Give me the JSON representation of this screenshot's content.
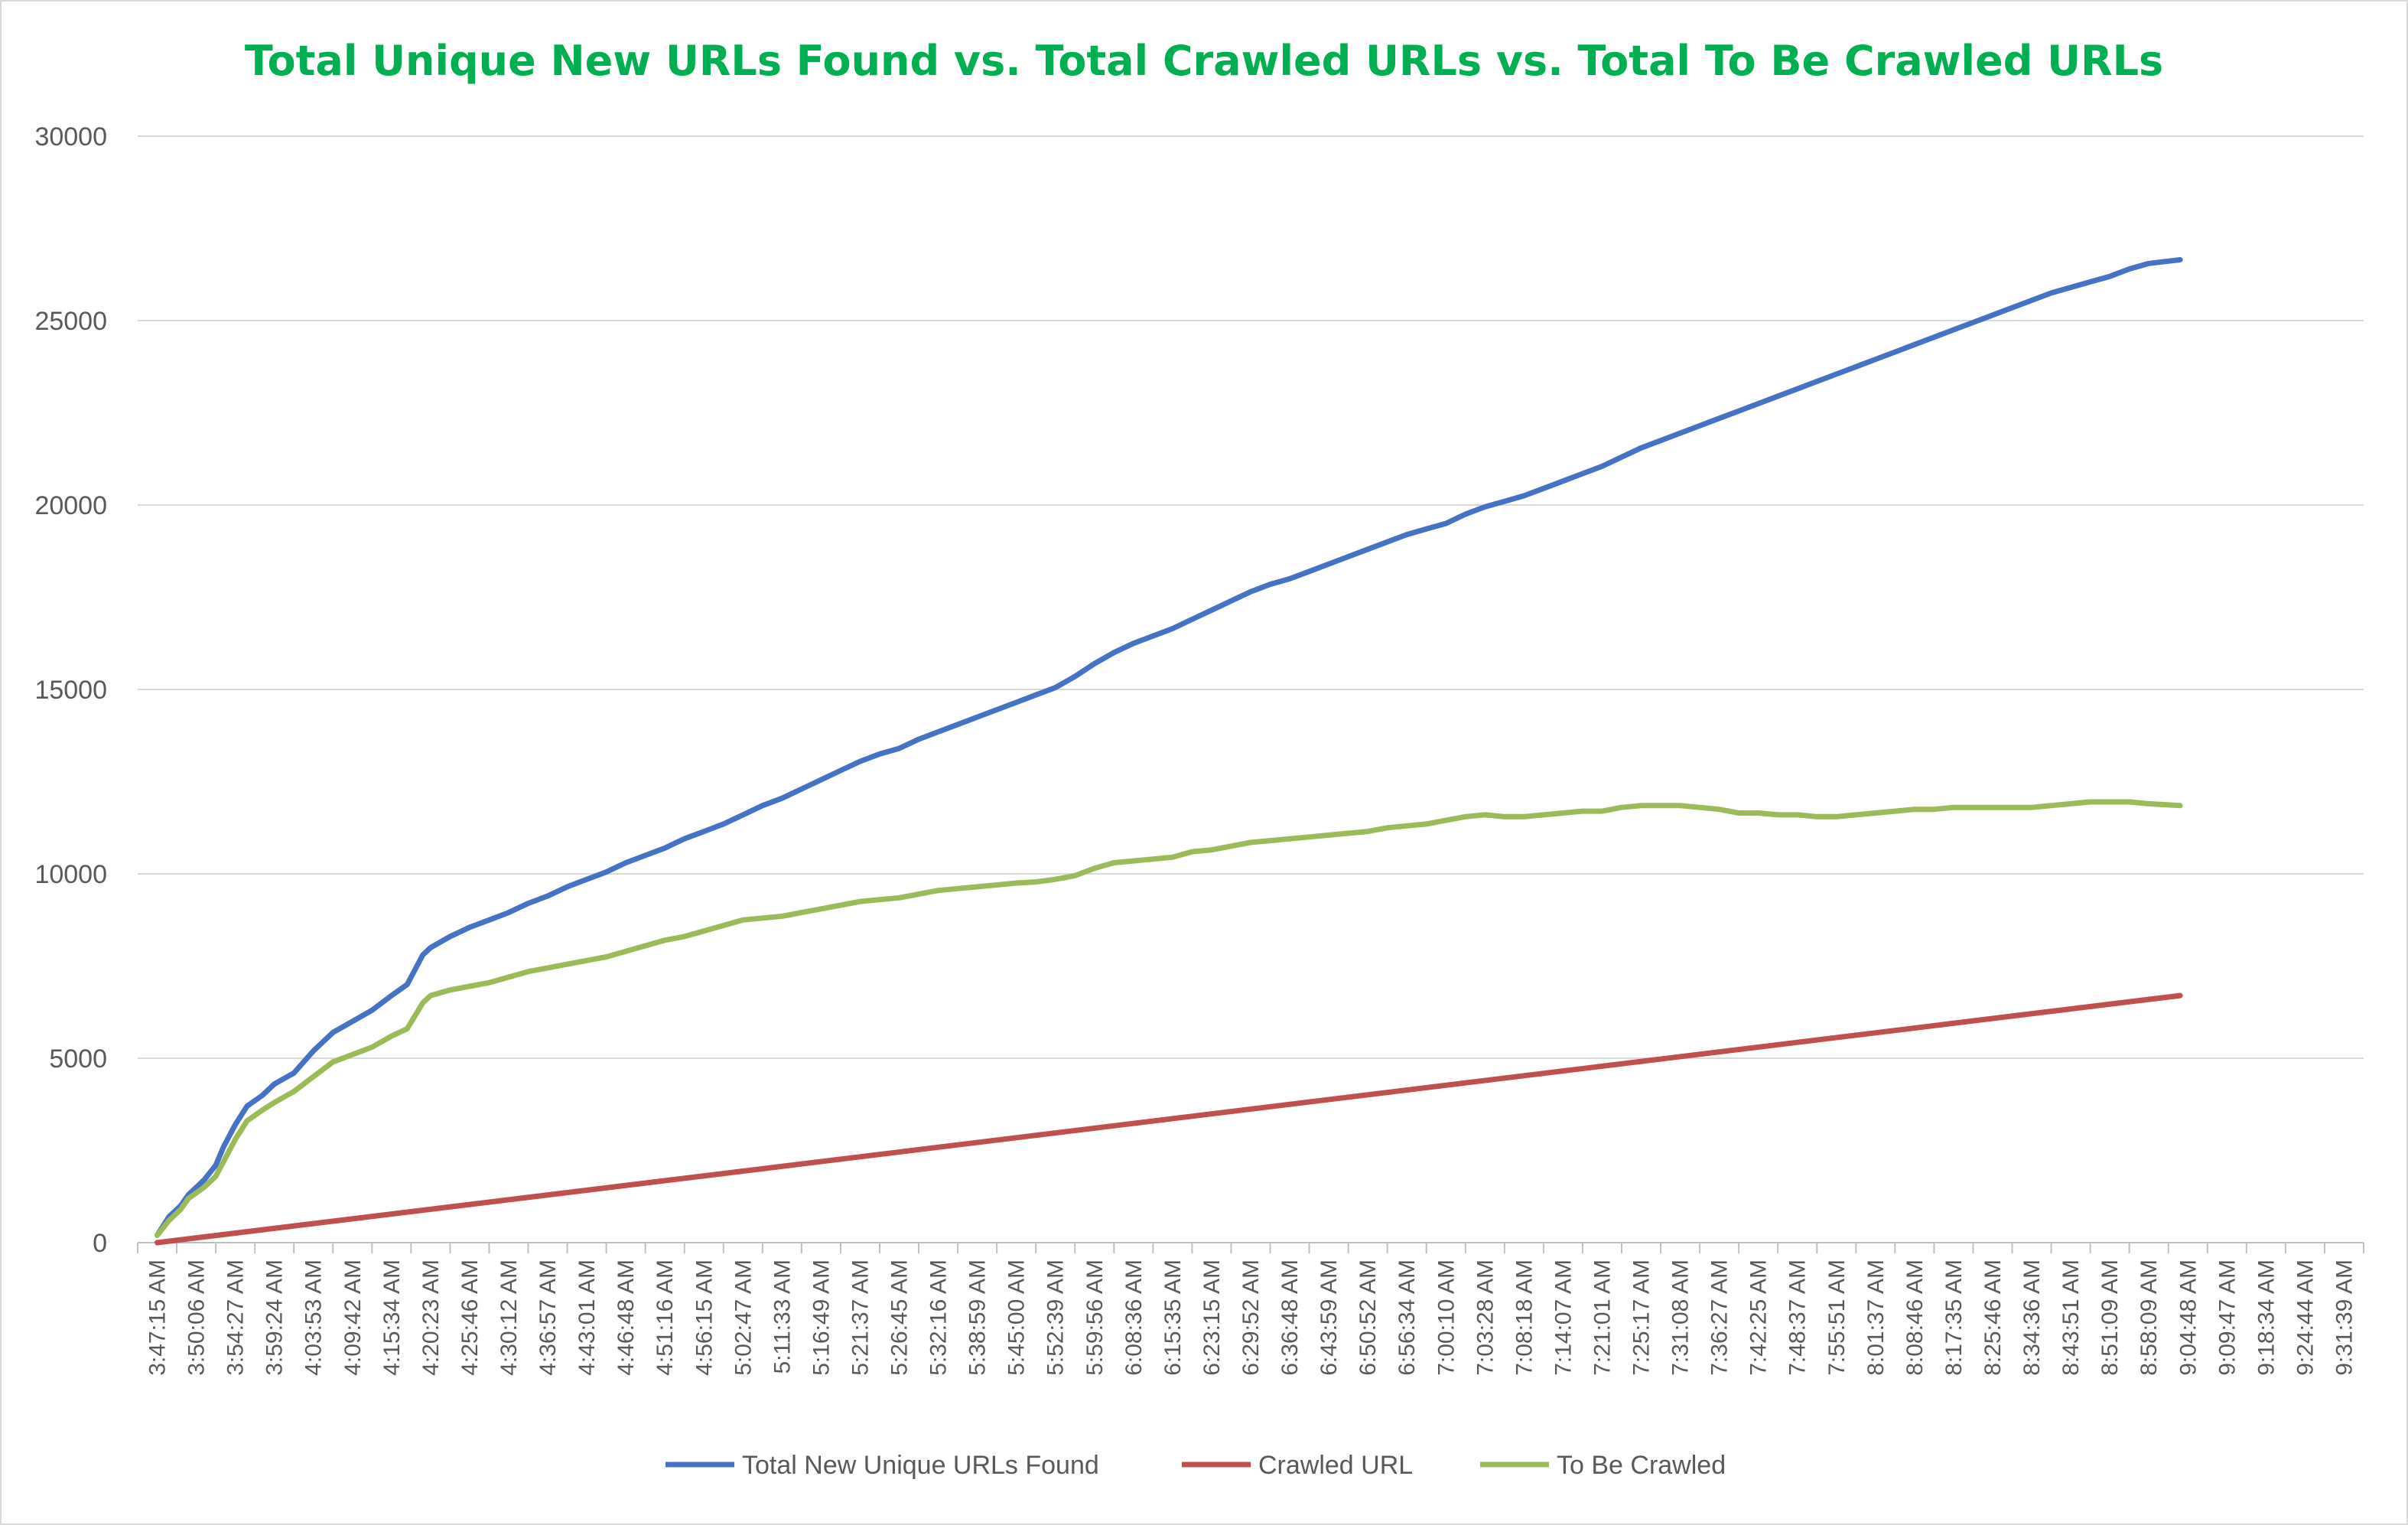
{
  "chart_data": {
    "type": "line",
    "title": "Total Unique New URLs Found vs. Total Crawled URLs vs. Total To Be Crawled URLs",
    "xlabel": "",
    "ylabel": "",
    "ylim": [
      0,
      30000
    ],
    "y_ticks": [
      "0",
      "5000",
      "10000",
      "15000",
      "20000",
      "25000",
      "30000"
    ],
    "grid": true,
    "legend_position": "bottom",
    "x": [
      "3:47:15 AM",
      "3:50:06 AM",
      "3:54:27 AM",
      "3:59:24 AM",
      "4:03:53 AM",
      "4:09:42 AM",
      "4:15:34 AM",
      "4:20:23 AM",
      "4:25:46 AM",
      "4:30:12 AM",
      "4:36:57 AM",
      "4:43:01 AM",
      "4:46:48 AM",
      "4:51:16 AM",
      "4:56:15 AM",
      "5:02:47 AM",
      "5:11:33 AM",
      "5:16:49 AM",
      "5:21:37 AM",
      "5:26:45 AM",
      "5:32:16 AM",
      "5:38:59 AM",
      "5:45:00 AM",
      "5:52:39 AM",
      "5:59:56 AM",
      "6:08:36 AM",
      "6:15:35 AM",
      "6:23:15 AM",
      "6:29:52 AM",
      "6:36:48 AM",
      "6:43:59 AM",
      "6:50:52 AM",
      "6:56:34 AM",
      "7:00:10 AM",
      "7:03:28 AM",
      "7:08:18 AM",
      "7:14:07 AM",
      "7:21:01 AM",
      "7:25:17 AM",
      "7:31:08 AM",
      "7:36:27 AM",
      "7:42:25 AM",
      "7:48:37 AM",
      "7:55:51 AM",
      "8:01:37 AM",
      "8:08:46 AM",
      "8:17:35 AM",
      "8:25:46 AM",
      "8:34:36 AM",
      "8:43:51 AM",
      "8:51:09 AM",
      "8:58:09 AM",
      "9:04:48 AM",
      "9:09:47 AM",
      "9:18:34 AM",
      "9:24:44 AM",
      "9:31:39 AM"
    ],
    "series": [
      {
        "name": "Total New Unique URLs Found",
        "color": "#4472c4",
        "values": [
          [
            0,
            200
          ],
          [
            0.3,
            700
          ],
          [
            0.6,
            1000
          ],
          [
            0.8,
            1300
          ],
          [
            1.2,
            1700
          ],
          [
            1.5,
            2100
          ],
          [
            1.7,
            2600
          ],
          [
            2.0,
            3200
          ],
          [
            2.3,
            3700
          ],
          [
            2.7,
            4000
          ],
          [
            3.0,
            4300
          ],
          [
            3.5,
            4600
          ],
          [
            4.0,
            5200
          ],
          [
            4.5,
            5700
          ],
          [
            5.0,
            6000
          ],
          [
            5.5,
            6300
          ],
          [
            6.0,
            6700
          ],
          [
            6.4,
            7000
          ],
          [
            6.8,
            7800
          ],
          [
            7.0,
            8000
          ],
          [
            7.5,
            8300
          ],
          [
            8.0,
            8550
          ],
          [
            8.5,
            8750
          ],
          [
            9.0,
            8950
          ],
          [
            9.5,
            9200
          ],
          [
            10.0,
            9400
          ],
          [
            10.5,
            9650
          ],
          [
            11.0,
            9850
          ],
          [
            11.5,
            10050
          ],
          [
            12.0,
            10300
          ],
          [
            12.5,
            10500
          ],
          [
            13.0,
            10700
          ],
          [
            13.5,
            10950
          ],
          [
            14.0,
            11150
          ],
          [
            14.5,
            11350
          ],
          [
            15.0,
            11600
          ],
          [
            15.5,
            11850
          ],
          [
            16.0,
            12050
          ],
          [
            16.5,
            12300
          ],
          [
            17.0,
            12550
          ],
          [
            17.5,
            12800
          ],
          [
            18.0,
            13050
          ],
          [
            18.5,
            13250
          ],
          [
            19.0,
            13400
          ],
          [
            19.5,
            13650
          ],
          [
            20.0,
            13850
          ],
          [
            20.5,
            14050
          ],
          [
            21.0,
            14250
          ],
          [
            21.5,
            14450
          ],
          [
            22.0,
            14650
          ],
          [
            22.5,
            14850
          ],
          [
            23.0,
            15050
          ],
          [
            23.5,
            15350
          ],
          [
            24.0,
            15700
          ],
          [
            24.5,
            16000
          ],
          [
            25.0,
            16250
          ],
          [
            25.5,
            16450
          ],
          [
            26.0,
            16650
          ],
          [
            26.5,
            16900
          ],
          [
            27.0,
            17150
          ],
          [
            27.5,
            17400
          ],
          [
            28.0,
            17650
          ],
          [
            28.5,
            17850
          ],
          [
            29.0,
            18000
          ],
          [
            29.5,
            18200
          ],
          [
            30.0,
            18400
          ],
          [
            30.5,
            18600
          ],
          [
            31.0,
            18800
          ],
          [
            31.5,
            19000
          ],
          [
            32.0,
            19200
          ],
          [
            32.5,
            19350
          ],
          [
            33.0,
            19500
          ],
          [
            33.5,
            19750
          ],
          [
            34.0,
            19950
          ],
          [
            34.5,
            20100
          ],
          [
            35.0,
            20250
          ],
          [
            35.5,
            20450
          ],
          [
            36.0,
            20650
          ],
          [
            36.5,
            20850
          ],
          [
            37.0,
            21050
          ],
          [
            37.5,
            21300
          ],
          [
            38.0,
            21550
          ],
          [
            38.5,
            21750
          ],
          [
            39.0,
            21950
          ],
          [
            39.5,
            22150
          ],
          [
            40.0,
            22350
          ],
          [
            40.5,
            22550
          ],
          [
            41.0,
            22750
          ],
          [
            41.5,
            22950
          ],
          [
            42.0,
            23150
          ],
          [
            42.5,
            23350
          ],
          [
            43.0,
            23550
          ],
          [
            43.5,
            23750
          ],
          [
            44.0,
            23950
          ],
          [
            44.5,
            24150
          ],
          [
            45.0,
            24350
          ],
          [
            45.5,
            24550
          ],
          [
            46.0,
            24750
          ],
          [
            46.5,
            24950
          ],
          [
            47.0,
            25150
          ],
          [
            47.5,
            25350
          ],
          [
            48.0,
            25550
          ],
          [
            48.5,
            25750
          ],
          [
            49.0,
            25900
          ],
          [
            49.5,
            26050
          ],
          [
            50.0,
            26200
          ],
          [
            50.5,
            26400
          ],
          [
            51.0,
            26550
          ],
          [
            51.8,
            26650
          ]
        ]
      },
      {
        "name": "Crawled URL",
        "color": "#c0504d",
        "values": [
          [
            0,
            0
          ],
          [
            51.8,
            6700
          ]
        ]
      },
      {
        "name": "To Be Crawled",
        "color": "#9bbb59",
        "values": [
          [
            0,
            200
          ],
          [
            0.3,
            600
          ],
          [
            0.6,
            900
          ],
          [
            0.8,
            1200
          ],
          [
            1.2,
            1500
          ],
          [
            1.5,
            1800
          ],
          [
            1.7,
            2200
          ],
          [
            2.0,
            2800
          ],
          [
            2.3,
            3300
          ],
          [
            2.7,
            3600
          ],
          [
            3.0,
            3800
          ],
          [
            3.5,
            4100
          ],
          [
            4.0,
            4500
          ],
          [
            4.5,
            4900
          ],
          [
            5.0,
            5100
          ],
          [
            5.5,
            5300
          ],
          [
            6.0,
            5600
          ],
          [
            6.4,
            5800
          ],
          [
            6.8,
            6500
          ],
          [
            7.0,
            6700
          ],
          [
            7.5,
            6850
          ],
          [
            8.0,
            6950
          ],
          [
            8.5,
            7050
          ],
          [
            9.0,
            7200
          ],
          [
            9.5,
            7350
          ],
          [
            10.0,
            7450
          ],
          [
            10.5,
            7550
          ],
          [
            11.0,
            7650
          ],
          [
            11.5,
            7750
          ],
          [
            12.0,
            7900
          ],
          [
            12.5,
            8050
          ],
          [
            13.0,
            8200
          ],
          [
            13.5,
            8300
          ],
          [
            14.0,
            8450
          ],
          [
            14.5,
            8600
          ],
          [
            15.0,
            8750
          ],
          [
            15.5,
            8800
          ],
          [
            16.0,
            8850
          ],
          [
            16.5,
            8950
          ],
          [
            17.0,
            9050
          ],
          [
            17.5,
            9150
          ],
          [
            18.0,
            9250
          ],
          [
            18.5,
            9300
          ],
          [
            19.0,
            9350
          ],
          [
            19.5,
            9450
          ],
          [
            20.0,
            9550
          ],
          [
            20.5,
            9600
          ],
          [
            21.0,
            9650
          ],
          [
            21.5,
            9700
          ],
          [
            22.0,
            9750
          ],
          [
            22.5,
            9780
          ],
          [
            23.0,
            9850
          ],
          [
            23.5,
            9950
          ],
          [
            24.0,
            10150
          ],
          [
            24.5,
            10300
          ],
          [
            25.0,
            10350
          ],
          [
            25.5,
            10400
          ],
          [
            26.0,
            10450
          ],
          [
            26.5,
            10600
          ],
          [
            27.0,
            10650
          ],
          [
            27.5,
            10750
          ],
          [
            28.0,
            10850
          ],
          [
            28.5,
            10900
          ],
          [
            29.0,
            10950
          ],
          [
            29.5,
            11000
          ],
          [
            30.0,
            11050
          ],
          [
            30.5,
            11100
          ],
          [
            31.0,
            11150
          ],
          [
            31.5,
            11250
          ],
          [
            32.0,
            11300
          ],
          [
            32.5,
            11350
          ],
          [
            33.0,
            11450
          ],
          [
            33.5,
            11550
          ],
          [
            34.0,
            11600
          ],
          [
            34.5,
            11550
          ],
          [
            35.0,
            11550
          ],
          [
            35.5,
            11600
          ],
          [
            36.0,
            11650
          ],
          [
            36.5,
            11700
          ],
          [
            37.0,
            11700
          ],
          [
            37.5,
            11800
          ],
          [
            38.0,
            11850
          ],
          [
            38.5,
            11850
          ],
          [
            39.0,
            11850
          ],
          [
            39.5,
            11800
          ],
          [
            40.0,
            11750
          ],
          [
            40.5,
            11650
          ],
          [
            41.0,
            11650
          ],
          [
            41.5,
            11600
          ],
          [
            42.0,
            11600
          ],
          [
            42.5,
            11550
          ],
          [
            43.0,
            11550
          ],
          [
            43.5,
            11600
          ],
          [
            44.0,
            11650
          ],
          [
            44.5,
            11700
          ],
          [
            45.0,
            11750
          ],
          [
            45.5,
            11750
          ],
          [
            46.0,
            11800
          ],
          [
            46.5,
            11800
          ],
          [
            47.0,
            11800
          ],
          [
            47.5,
            11800
          ],
          [
            48.0,
            11800
          ],
          [
            48.5,
            11850
          ],
          [
            49.0,
            11900
          ],
          [
            49.5,
            11950
          ],
          [
            50.0,
            11950
          ],
          [
            50.5,
            11950
          ],
          [
            51.0,
            11900
          ],
          [
            51.8,
            11850
          ]
        ]
      }
    ]
  }
}
